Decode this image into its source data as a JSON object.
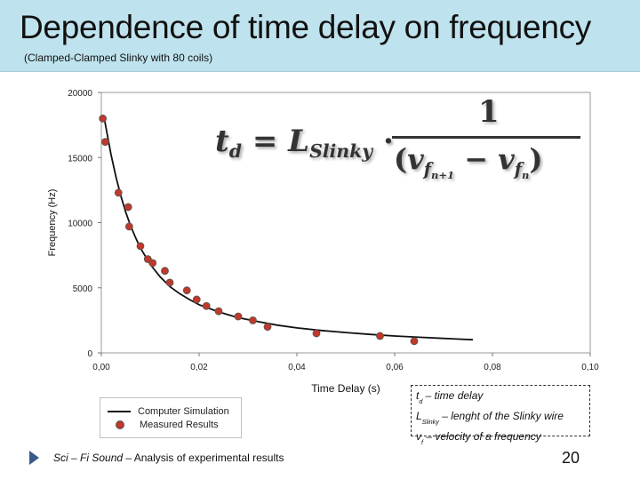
{
  "header": {
    "title": "Dependence of time delay on frequency",
    "subtitle": "(Clamped-Clamped Slinky with 80 coils)"
  },
  "formula": {
    "lhs": "t",
    "lhs_sub": "d",
    "equals": "=",
    "L": "L",
    "L_sub": "Slinky",
    "dot": "·",
    "numerator": "1",
    "v": "v",
    "f1": "f",
    "n1": "n+1",
    "minus": "−",
    "f2": "f",
    "n2": "n"
  },
  "definitions": {
    "td_main": "t",
    "td_sub": "d",
    "td_text": " – time delay",
    "l_main": "L",
    "l_sub": "Slinky",
    "l_text": " – lenght of the Slinky wire",
    "v_main": "v",
    "v_sub": "f",
    "v_text": " – velocity of a frequency"
  },
  "legend": {
    "line_label": "Computer Simulation",
    "marker_label": "Measured Results"
  },
  "footer": {
    "italic": "Sci – Fi Sound",
    "text": " – Analysis of experimental results",
    "page": "20"
  },
  "colors": {
    "header_bg": "#bfe3ee",
    "marker": "#c0392b",
    "line": "#111111"
  },
  "chart_data": {
    "type": "scatter",
    "xlabel": "Time Delay (s)",
    "ylabel": "Frequency (Hz)",
    "xlim": [
      0,
      0.1
    ],
    "ylim": [
      0,
      20000
    ],
    "x_ticks": [
      "0,00",
      "0,02",
      "0,04",
      "0,06",
      "0,08",
      "0,10"
    ],
    "y_ticks": [
      "0",
      "5000",
      "10000",
      "15000",
      "20000"
    ],
    "grid": false,
    "series": [
      {
        "name": "Computer Simulation",
        "kind": "line",
        "x": [
          0.0005,
          0.001,
          0.002,
          0.003,
          0.004,
          0.005,
          0.006,
          0.007,
          0.008,
          0.01,
          0.012,
          0.014,
          0.016,
          0.018,
          0.02,
          0.024,
          0.028,
          0.032,
          0.036,
          0.04,
          0.045,
          0.05,
          0.055,
          0.06,
          0.065,
          0.07,
          0.076
        ],
        "y": [
          18200,
          17200,
          15200,
          13500,
          12050,
          10800,
          9750,
          8850,
          8050,
          6800,
          5850,
          5100,
          4550,
          4100,
          3700,
          3150,
          2700,
          2400,
          2130,
          1920,
          1720,
          1560,
          1420,
          1300,
          1200,
          1110,
          1010
        ]
      },
      {
        "name": "Measured Results",
        "kind": "markers",
        "x": [
          0.0003,
          0.0008,
          0.0035,
          0.0055,
          0.0057,
          0.008,
          0.0095,
          0.0105,
          0.013,
          0.014,
          0.0175,
          0.0195,
          0.0215,
          0.024,
          0.028,
          0.031,
          0.034,
          0.044,
          0.057,
          0.064
        ],
        "y": [
          18000,
          16200,
          12300,
          11200,
          9700,
          8200,
          7200,
          6900,
          6300,
          5400,
          4800,
          4100,
          3600,
          3200,
          2800,
          2500,
          2000,
          1500,
          1300,
          900
        ]
      }
    ]
  }
}
